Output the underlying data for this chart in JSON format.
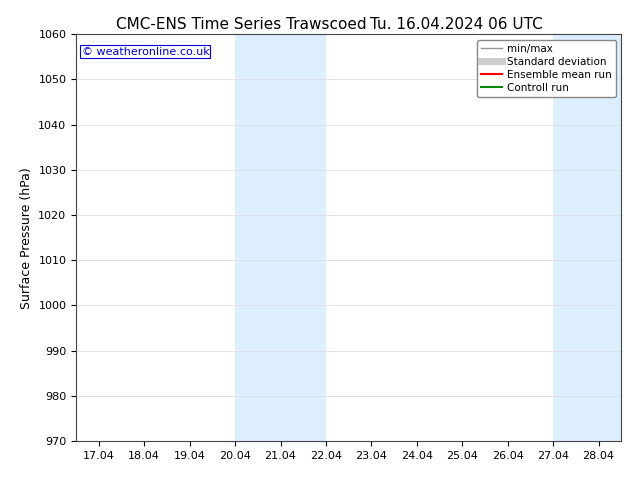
{
  "title_left": "CMC-ENS Time Series Trawscoed",
  "title_right": "Tu. 16.04.2024 06 UTC",
  "ylabel": "Surface Pressure (hPa)",
  "ylim": [
    970,
    1060
  ],
  "yticks": [
    970,
    980,
    990,
    1000,
    1010,
    1020,
    1030,
    1040,
    1050,
    1060
  ],
  "x_labels": [
    "17.04",
    "18.04",
    "19.04",
    "20.04",
    "21.04",
    "22.04",
    "23.04",
    "24.04",
    "25.04",
    "26.04",
    "27.04",
    "28.04"
  ],
  "x_positions": [
    0,
    1,
    2,
    3,
    4,
    5,
    6,
    7,
    8,
    9,
    10,
    11
  ],
  "xlim": [
    -0.5,
    11.5
  ],
  "shaded_regions": [
    {
      "x_start": 3.0,
      "x_end": 5.0,
      "color": "#ddeeff"
    },
    {
      "x_start": 10.0,
      "x_end": 11.5,
      "color": "#ddeeff"
    }
  ],
  "watermark_text": "© weatheronline.co.uk",
  "watermark_color": "#0000cc",
  "background_color": "#ffffff",
  "plot_bg_color": "#ffffff",
  "grid_color": "#dddddd",
  "legend_items": [
    {
      "label": "min/max",
      "color": "#999999",
      "lw": 1.0,
      "ls": "-"
    },
    {
      "label": "Standard deviation",
      "color": "#cccccc",
      "lw": 5,
      "ls": "-"
    },
    {
      "label": "Ensemble mean run",
      "color": "#ff0000",
      "lw": 1.5,
      "ls": "-"
    },
    {
      "label": "Controll run",
      "color": "#008800",
      "lw": 1.5,
      "ls": "-"
    }
  ],
  "title_fontsize": 11,
  "tick_fontsize": 8,
  "label_fontsize": 9,
  "watermark_fontsize": 8,
  "legend_fontsize": 7.5
}
